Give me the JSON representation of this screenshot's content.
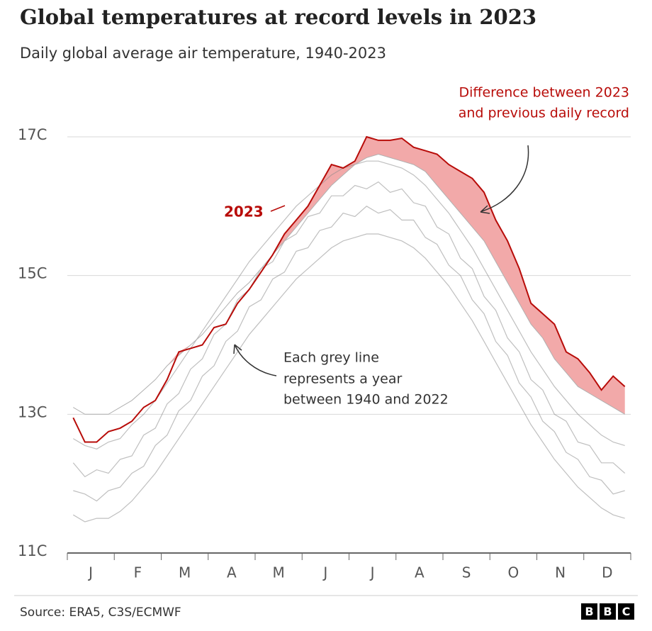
{
  "chart_data": {
    "type": "line",
    "title": "Global temperatures at record levels in 2023",
    "subtitle": "Daily global average air temperature, 1940-2023",
    "categories": [
      null,
      "J",
      null,
      null,
      null,
      "F",
      null,
      null,
      null,
      "M",
      null,
      null,
      null,
      "A",
      null,
      null,
      null,
      "M",
      null,
      null,
      null,
      "J",
      null,
      null,
      null,
      "J",
      null,
      null,
      null,
      "A",
      null,
      null,
      null,
      "S",
      null,
      null,
      null,
      "O",
      null,
      null,
      null,
      "N",
      null,
      null,
      null,
      "D",
      null,
      null
    ],
    "ylim": [
      11,
      17.3
    ],
    "yticks": [
      {
        "value": 11,
        "label": "11C"
      },
      {
        "value": 13,
        "label": "13C"
      },
      {
        "value": 15,
        "label": "15C"
      },
      {
        "value": 17,
        "label": "17C"
      }
    ],
    "grid": true,
    "series": [
      {
        "name": "2023",
        "color": "#b80c09",
        "values": [
          12.95,
          12.6,
          12.6,
          12.75,
          12.8,
          12.9,
          13.1,
          13.2,
          13.5,
          13.9,
          13.95,
          14.0,
          14.25,
          14.3,
          14.6,
          14.8,
          15.05,
          15.3,
          15.6,
          15.8,
          16.0,
          16.3,
          16.6,
          16.55,
          16.65,
          17.0,
          16.95,
          16.95,
          16.98,
          16.85,
          16.8,
          16.75,
          16.6,
          16.5,
          16.4,
          16.2,
          15.8,
          15.5,
          15.1,
          14.6,
          14.45,
          14.3,
          13.9,
          13.8,
          13.6,
          13.35,
          13.55,
          13.4
        ]
      }
    ],
    "previous_record": {
      "color": "#f2a9a9",
      "values": [
        13.1,
        13.0,
        13.0,
        13.0,
        13.1,
        13.2,
        13.35,
        13.5,
        13.7,
        13.85,
        14.0,
        14.15,
        14.35,
        14.55,
        14.75,
        14.9,
        15.1,
        15.3,
        15.5,
        15.7,
        15.9,
        16.1,
        16.3,
        16.45,
        16.6,
        16.7,
        16.75,
        16.7,
        16.65,
        16.6,
        16.5,
        16.3,
        16.1,
        15.9,
        15.7,
        15.5,
        15.2,
        14.9,
        14.6,
        14.3,
        14.1,
        13.8,
        13.6,
        13.4,
        13.3,
        13.2,
        13.1,
        13.0
      ]
    },
    "grey_years": {
      "color": "#8a8a8a",
      "series": [
        [
          11.55,
          11.45,
          11.5,
          11.5,
          11.6,
          11.75,
          11.95,
          12.15,
          12.4,
          12.65,
          12.9,
          13.15,
          13.4,
          13.65,
          13.9,
          14.15,
          14.35,
          14.55,
          14.75,
          14.95,
          15.1,
          15.25,
          15.4,
          15.5,
          15.55,
          15.6,
          15.6,
          15.55,
          15.5,
          15.4,
          15.25,
          15.05,
          14.85,
          14.6,
          14.35,
          14.05,
          13.75,
          13.45,
          13.15,
          12.85,
          12.6,
          12.35,
          12.15,
          11.95,
          11.8,
          11.65,
          11.55,
          11.5
        ],
        [
          11.9,
          11.85,
          11.75,
          11.9,
          11.95,
          12.15,
          12.25,
          12.55,
          12.7,
          13.05,
          13.2,
          13.55,
          13.7,
          14.05,
          14.2,
          14.55,
          14.65,
          14.95,
          15.05,
          15.35,
          15.4,
          15.65,
          15.7,
          15.9,
          15.85,
          16.0,
          15.9,
          15.95,
          15.8,
          15.8,
          15.55,
          15.45,
          15.15,
          15.0,
          14.65,
          14.45,
          14.05,
          13.85,
          13.45,
          13.25,
          12.9,
          12.75,
          12.45,
          12.35,
          12.1,
          12.05,
          11.85,
          11.9
        ],
        [
          12.3,
          12.1,
          12.2,
          12.15,
          12.35,
          12.4,
          12.7,
          12.8,
          13.15,
          13.3,
          13.65,
          13.8,
          14.15,
          14.3,
          14.65,
          14.8,
          15.1,
          15.2,
          15.5,
          15.6,
          15.85,
          15.9,
          16.15,
          16.15,
          16.3,
          16.25,
          16.35,
          16.2,
          16.25,
          16.05,
          16.0,
          15.7,
          15.6,
          15.25,
          15.1,
          14.7,
          14.5,
          14.1,
          13.9,
          13.5,
          13.35,
          13.0,
          12.9,
          12.6,
          12.55,
          12.3,
          12.3,
          12.15
        ],
        [
          12.65,
          12.55,
          12.5,
          12.6,
          12.65,
          12.85,
          13.0,
          13.2,
          13.45,
          13.7,
          13.95,
          14.2,
          14.45,
          14.7,
          14.95,
          15.2,
          15.4,
          15.6,
          15.8,
          16.0,
          16.15,
          16.3,
          16.45,
          16.55,
          16.6,
          16.65,
          16.65,
          16.6,
          16.55,
          16.45,
          16.3,
          16.1,
          15.9,
          15.65,
          15.4,
          15.1,
          14.8,
          14.5,
          14.2,
          13.9,
          13.65,
          13.4,
          13.2,
          13.0,
          12.85,
          12.7,
          12.6,
          12.55
        ]
      ]
    },
    "annotations": {
      "difference": [
        "Difference between 2023",
        "and previous daily record"
      ],
      "grey_lines": [
        "Each grey line",
        "represents a year",
        "between 1940 and 2022"
      ]
    },
    "source": "Source: ERA5, C3S/ECMWF",
    "logo": [
      "B",
      "B",
      "C"
    ]
  }
}
